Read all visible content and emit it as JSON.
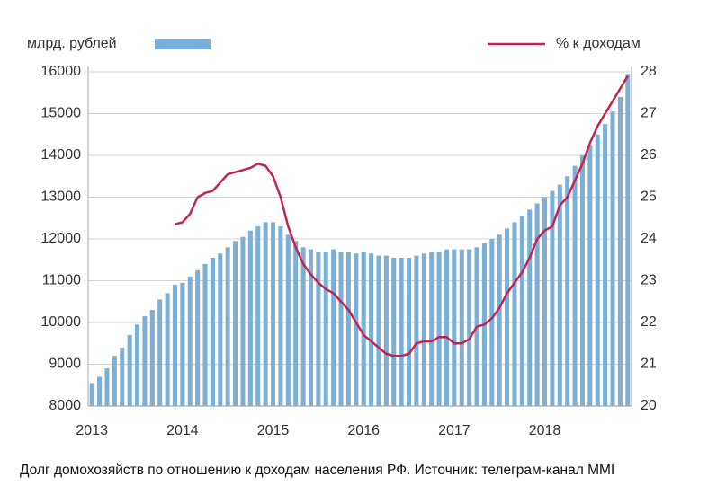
{
  "chart_data": {
    "type": "bar_line",
    "caption": "Долг домохозяйств по отношению к доходам населения РФ. Источник: телеграм-канал MMI",
    "categories": [
      "2013",
      null,
      null,
      null,
      null,
      null,
      null,
      null,
      null,
      null,
      null,
      null,
      "2014",
      null,
      null,
      null,
      null,
      null,
      null,
      null,
      null,
      null,
      null,
      null,
      "2015",
      null,
      null,
      null,
      null,
      null,
      null,
      null,
      null,
      null,
      null,
      null,
      "2016",
      null,
      null,
      null,
      null,
      null,
      null,
      null,
      null,
      null,
      null,
      null,
      "2017",
      null,
      null,
      null,
      null,
      null,
      null,
      null,
      null,
      null,
      null,
      null,
      "2018",
      null,
      null,
      null,
      null,
      null,
      null,
      null,
      null,
      null,
      null,
      null
    ],
    "series": [
      {
        "name": "млрд. рублей",
        "color": "#7bafd6",
        "type": "bar",
        "values": [
          8550,
          8700,
          8900,
          9200,
          9400,
          9700,
          9950,
          10150,
          10300,
          10550,
          10700,
          10900,
          10950,
          11100,
          11250,
          11400,
          11550,
          11650,
          11800,
          11950,
          12050,
          12200,
          12300,
          12400,
          12400,
          12300,
          12100,
          11950,
          11800,
          11750,
          11700,
          11700,
          11750,
          11700,
          11700,
          11650,
          11700,
          11650,
          11600,
          11600,
          11550,
          11550,
          11550,
          11600,
          11650,
          11700,
          11700,
          11750,
          11750,
          11750,
          11750,
          11800,
          11900,
          12000,
          12100,
          12250,
          12400,
          12550,
          12700,
          12850,
          13000,
          13150,
          13300,
          13500,
          13750,
          14000,
          14250,
          14500,
          14750,
          15050,
          15400,
          15950
        ]
      },
      {
        "name": "% к доходам",
        "color": "#c4234f",
        "type": "line",
        "axis": "y2",
        "values": [
          null,
          null,
          null,
          null,
          null,
          null,
          null,
          null,
          null,
          null,
          null,
          24.35,
          24.4,
          24.6,
          25.0,
          25.1,
          25.15,
          25.35,
          25.55,
          25.6,
          25.65,
          25.7,
          25.8,
          25.75,
          25.5,
          25.0,
          24.3,
          23.8,
          23.4,
          23.15,
          22.95,
          22.8,
          22.7,
          22.5,
          22.3,
          22.0,
          21.7,
          21.55,
          21.4,
          21.25,
          21.2,
          21.2,
          21.25,
          21.5,
          21.55,
          21.55,
          21.65,
          21.65,
          21.5,
          21.5,
          21.6,
          21.9,
          21.95,
          22.1,
          22.35,
          22.7,
          22.95,
          23.2,
          23.55,
          24.0,
          24.2,
          24.3,
          24.8,
          25.0,
          25.4,
          25.8,
          26.3,
          26.7,
          27.0,
          27.3,
          27.6,
          27.9
        ]
      }
    ],
    "ylim": [
      8000,
      16000
    ],
    "yticks": [
      8000,
      9000,
      10000,
      11000,
      12000,
      13000,
      14000,
      15000,
      16000
    ],
    "y2lim": [
      20,
      28
    ],
    "y2ticks": [
      20,
      21,
      22,
      23,
      24,
      25,
      26,
      27,
      28
    ],
    "grid": true
  }
}
